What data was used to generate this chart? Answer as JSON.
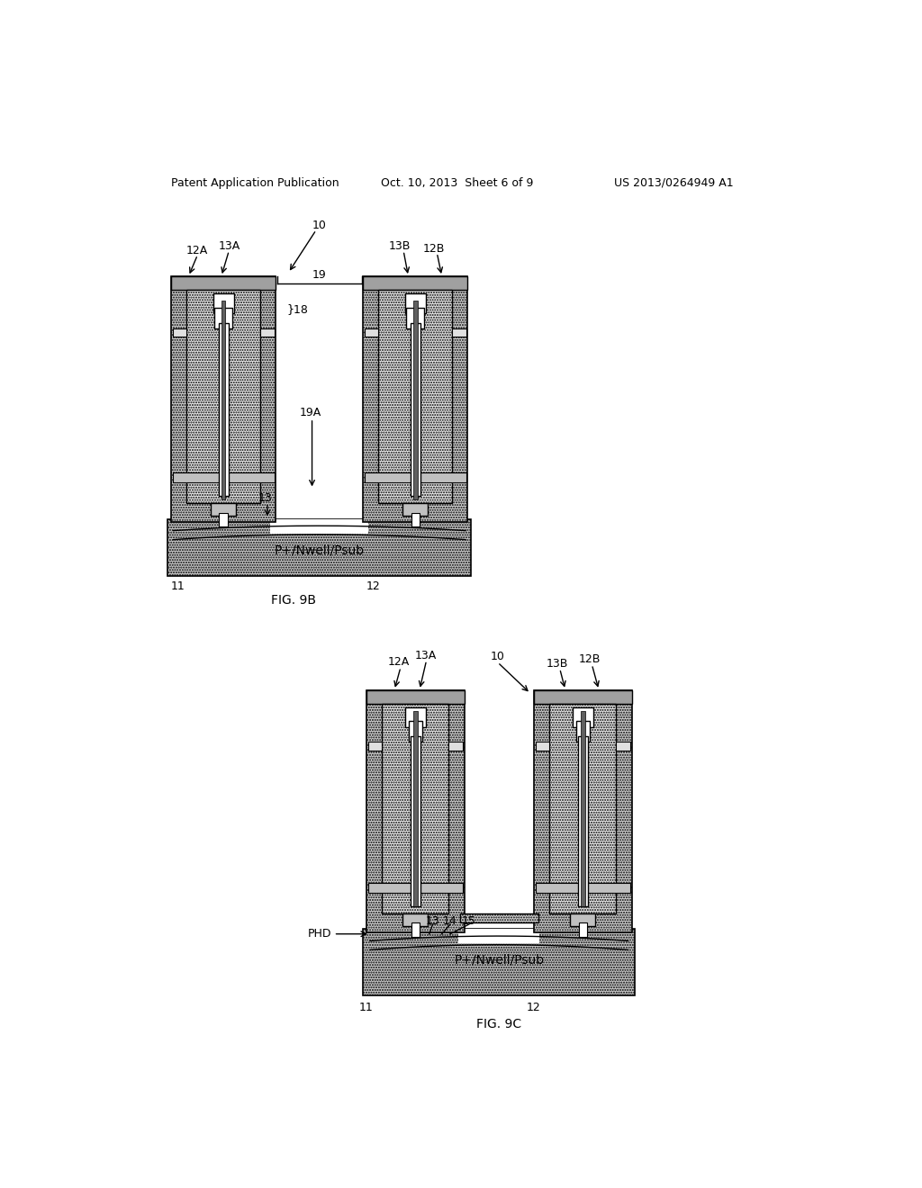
{
  "bg_color": "#ffffff",
  "header_left": "Patent Application Publication",
  "header_mid": "Oct. 10, 2013  Sheet 6 of 9",
  "header_right": "US 2013/0264949 A1",
  "fig9b_label": "FIG. 9B",
  "fig9c_label": "FIG. 9C",
  "hatch_dot": "......",
  "line_color": "#000000",
  "col_hatch_fc": "#c8c8c8",
  "sub_fc": "#c0c0c0",
  "inner_fc": "#e0e0e0",
  "metal_fc": "#f0f0f0",
  "top_layer_fc": "#b8b8b8",
  "bottom_layer_fc": "#c8c8c8"
}
